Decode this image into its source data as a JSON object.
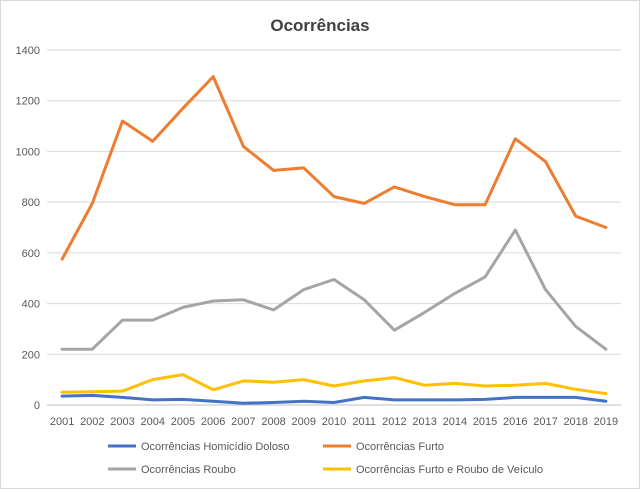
{
  "chart_data": {
    "type": "line",
    "title": "Ocorrências",
    "xlabel": "",
    "ylabel": "",
    "ylim": [
      0,
      1400
    ],
    "yticks": [
      0,
      200,
      400,
      600,
      800,
      1000,
      1200,
      1400
    ],
    "grid": true,
    "legend_position": "bottom",
    "categories": [
      "2001",
      "2002",
      "2003",
      "2004",
      "2005",
      "2006",
      "2007",
      "2008",
      "2009",
      "2010",
      "2011",
      "2012",
      "2013",
      "2014",
      "2015",
      "2016",
      "2017",
      "2018",
      "2019"
    ],
    "series": [
      {
        "name": "Ocorrências Homicídio Doloso",
        "color": "#4472c4",
        "values": [
          35,
          38,
          30,
          20,
          22,
          15,
          7,
          10,
          15,
          10,
          30,
          20,
          20,
          20,
          22,
          30,
          30,
          30,
          15
        ]
      },
      {
        "name": "Ocorrências Furto",
        "color": "#ed7d31",
        "values": [
          575,
          795,
          1120,
          1040,
          1170,
          1295,
          1020,
          925,
          935,
          822,
          795,
          860,
          822,
          790,
          790,
          1050,
          960,
          745,
          700
        ]
      },
      {
        "name": "Ocorrências Roubo",
        "color": "#a5a5a5",
        "values": [
          220,
          220,
          335,
          335,
          385,
          410,
          415,
          375,
          455,
          495,
          415,
          295,
          365,
          440,
          505,
          690,
          455,
          310,
          220
        ]
      },
      {
        "name": "Ocorrências Furto e Roubo de Veículo",
        "color": "#ffc000",
        "values": [
          50,
          52,
          55,
          100,
          120,
          60,
          95,
          90,
          100,
          75,
          95,
          108,
          78,
          85,
          75,
          78,
          85,
          62,
          45
        ]
      }
    ]
  }
}
